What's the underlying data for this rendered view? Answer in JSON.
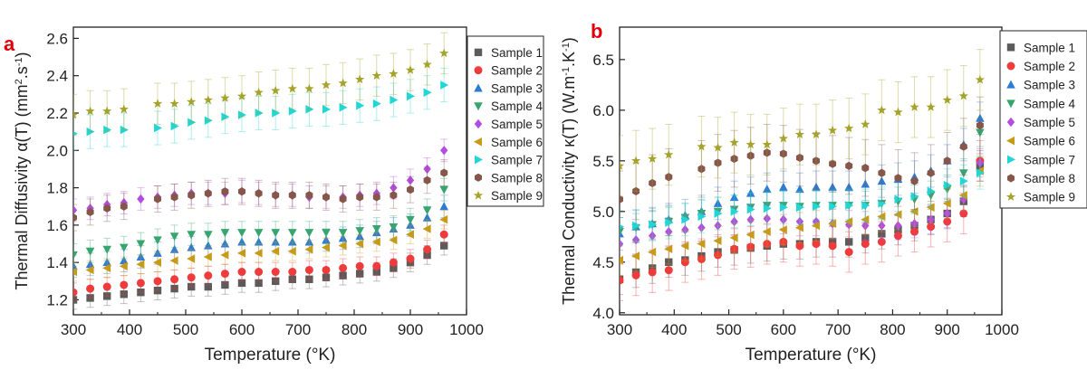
{
  "chart_data": [
    {
      "type": "scatter",
      "panel_label": "a",
      "ylabel": "Thermal Diffusivity α(T) (mm²·s⁻¹)",
      "ylabel_main": "Thermal Diffusivity ",
      "ylabel_symbol": "α(T) (mm",
      "ylabel_sup1": "2",
      "ylabel_mid": ".s",
      "ylabel_sup2": "-1",
      "ylabel_end": ")",
      "xlabel": "Temperature (°K)",
      "xlim": [
        300,
        1000
      ],
      "ylim": [
        1.12,
        2.66
      ],
      "xticks": [
        300,
        400,
        500,
        600,
        700,
        800,
        900,
        1000
      ],
      "yticks": [
        1.2,
        1.4,
        1.6,
        1.8,
        2.0,
        2.2,
        2.4,
        2.6
      ],
      "ytick_labels": [
        "1.2",
        "1.4",
        "1.6",
        "1.8",
        "2.0",
        "2.2",
        "2.4",
        "2.6"
      ],
      "x": [
        300,
        330,
        360,
        390,
        420,
        450,
        480,
        510,
        540,
        570,
        600,
        630,
        660,
        690,
        720,
        750,
        780,
        810,
        840,
        870,
        900,
        930,
        960
      ],
      "series": [
        {
          "name": "Sample 1",
          "err": 0.05,
          "values": [
            1.2,
            1.21,
            1.22,
            1.23,
            1.24,
            1.25,
            1.26,
            1.27,
            1.27,
            1.28,
            1.29,
            1.29,
            1.3,
            1.31,
            1.31,
            1.32,
            1.33,
            1.34,
            1.35,
            1.37,
            1.4,
            1.44,
            1.49
          ]
        },
        {
          "name": "Sample 2",
          "err": 0.05,
          "values": [
            1.24,
            1.26,
            1.27,
            1.28,
            1.29,
            1.3,
            1.31,
            1.32,
            1.33,
            1.34,
            1.35,
            1.35,
            1.35,
            1.35,
            1.36,
            1.36,
            1.37,
            1.38,
            1.38,
            1.4,
            1.42,
            1.47,
            1.55
          ]
        },
        {
          "name": "Sample 3",
          "err": 0.06,
          "values": [
            1.38,
            1.39,
            1.4,
            1.41,
            1.43,
            1.45,
            1.47,
            1.48,
            1.49,
            1.5,
            1.51,
            1.51,
            1.51,
            1.51,
            1.51,
            1.52,
            1.53,
            1.54,
            1.56,
            1.58,
            1.6,
            1.64,
            1.7
          ]
        },
        {
          "name": "Sample 4",
          "err": 0.06,
          "values": [
            1.44,
            1.46,
            1.47,
            1.48,
            1.5,
            1.52,
            1.54,
            1.55,
            1.55,
            1.56,
            1.56,
            1.56,
            1.56,
            1.56,
            1.56,
            1.56,
            1.56,
            1.57,
            1.58,
            1.59,
            1.63,
            1.68,
            1.79
          ]
        },
        {
          "name": "Sample 5",
          "err": 0.06,
          "values": [
            1.68,
            1.69,
            1.71,
            1.72,
            1.74,
            1.75,
            1.76,
            1.77,
            1.77,
            1.77,
            1.78,
            1.77,
            1.76,
            1.76,
            1.75,
            1.75,
            1.75,
            1.76,
            1.77,
            1.8,
            1.84,
            1.9,
            2.0
          ]
        },
        {
          "name": "Sample 6",
          "err": 0.05,
          "values": [
            1.35,
            1.36,
            1.37,
            1.38,
            1.39,
            1.4,
            1.41,
            1.42,
            1.43,
            1.44,
            1.45,
            1.45,
            1.46,
            1.46,
            1.47,
            1.48,
            1.49,
            1.5,
            1.51,
            1.52,
            1.55,
            1.58,
            1.63
          ]
        },
        {
          "name": "Sample 7",
          "err": 0.09,
          "values": [
            2.09,
            2.1,
            2.11,
            2.11,
            null,
            2.12,
            2.13,
            2.15,
            2.16,
            2.18,
            2.19,
            2.2,
            2.2,
            2.21,
            2.22,
            2.22,
            2.23,
            2.24,
            2.25,
            2.27,
            2.29,
            2.31,
            2.35
          ]
        },
        {
          "name": "Sample 8",
          "err": 0.07,
          "values": [
            1.64,
            1.67,
            1.69,
            1.7,
            null,
            1.74,
            1.75,
            1.76,
            1.77,
            1.78,
            1.78,
            1.77,
            1.76,
            1.76,
            1.76,
            1.75,
            1.74,
            1.75,
            1.75,
            1.76,
            1.79,
            1.84,
            1.88
          ]
        },
        {
          "name": "Sample 9",
          "err": 0.11,
          "values": [
            2.19,
            2.21,
            2.21,
            2.22,
            null,
            2.25,
            2.25,
            2.26,
            2.27,
            2.28,
            2.29,
            2.31,
            2.32,
            2.33,
            2.33,
            2.35,
            2.36,
            2.38,
            2.4,
            2.41,
            2.43,
            2.46,
            2.52
          ]
        }
      ],
      "legend": "top-right"
    },
    {
      "type": "scatter",
      "panel_label": "b",
      "ylabel": "Thermal Conductivity κ(T) (W·m⁻¹·K⁻¹)",
      "ylabel_main": "Thermal Conductivity ",
      "ylabel_symbol": "κ(T) (W.m",
      "ylabel_sup1": "-1",
      "ylabel_mid": ".K",
      "ylabel_sup2": "-1",
      "ylabel_end": ")",
      "xlabel": "Temperature (°K)",
      "xlim": [
        300,
        1000
      ],
      "ylim": [
        3.98,
        6.82
      ],
      "xticks": [
        300,
        400,
        500,
        600,
        700,
        800,
        900,
        1000
      ],
      "yticks": [
        4.0,
        4.5,
        5.0,
        5.5,
        6.0,
        6.5
      ],
      "ytick_labels": [
        "4.0",
        "4.5",
        "5.0",
        "5.5",
        "6.0",
        "6.5"
      ],
      "x": [
        300,
        330,
        360,
        390,
        420,
        450,
        480,
        510,
        540,
        570,
        600,
        630,
        660,
        690,
        720,
        750,
        780,
        810,
        840,
        870,
        900,
        930,
        960
      ],
      "series": [
        {
          "name": "Sample 1",
          "err": 0.15,
          "values": [
            4.33,
            4.4,
            4.44,
            4.5,
            4.52,
            4.56,
            4.6,
            4.62,
            4.64,
            4.66,
            4.68,
            4.68,
            4.7,
            4.7,
            4.7,
            4.74,
            4.78,
            4.82,
            4.86,
            4.92,
            4.98,
            5.1,
            5.45
          ]
        },
        {
          "name": "Sample 2",
          "err": 0.2,
          "values": [
            4.32,
            4.37,
            4.4,
            4.42,
            4.5,
            4.53,
            4.57,
            4.63,
            4.65,
            4.68,
            4.7,
            4.66,
            4.68,
            4.66,
            4.6,
            4.68,
            4.7,
            4.76,
            4.8,
            4.85,
            4.9,
            4.98,
            5.5
          ]
        },
        {
          "name": "Sample 3",
          "err": 0.16,
          "values": [
            4.78,
            4.85,
            4.88,
            4.92,
            4.96,
            5.0,
            5.08,
            5.14,
            5.18,
            5.22,
            5.24,
            5.22,
            5.24,
            5.24,
            5.24,
            5.27,
            5.3,
            5.32,
            5.34,
            5.4,
            5.5,
            5.66,
            5.92
          ]
        },
        {
          "name": "Sample 4",
          "err": 0.14,
          "values": [
            4.8,
            4.84,
            4.87,
            4.9,
            4.94,
            4.98,
            5.0,
            5.02,
            5.04,
            5.06,
            5.06,
            5.05,
            5.06,
            5.06,
            5.06,
            5.06,
            5.08,
            5.1,
            5.12,
            5.16,
            5.22,
            5.38,
            5.78
          ]
        },
        {
          "name": "Sample 5",
          "err": 0.14,
          "values": [
            4.68,
            4.72,
            4.76,
            4.8,
            4.82,
            4.84,
            4.86,
            4.9,
            4.92,
            4.93,
            4.92,
            4.9,
            4.9,
            4.88,
            4.87,
            4.86,
            4.86,
            4.86,
            4.88,
            4.92,
            4.98,
            5.12,
            5.48
          ]
        },
        {
          "name": "Sample 6",
          "err": 0.15,
          "values": [
            4.52,
            4.56,
            4.6,
            4.63,
            4.66,
            4.68,
            4.71,
            4.74,
            4.77,
            4.8,
            4.82,
            4.84,
            4.86,
            4.88,
            4.9,
            4.92,
            4.95,
            4.97,
            5.0,
            5.04,
            5.08,
            5.16,
            5.4
          ]
        },
        {
          "name": "Sample 7",
          "err": 0.16,
          "values": [
            4.85,
            4.86,
            4.87,
            4.89,
            4.92,
            4.95,
            4.98,
            5.0,
            5.02,
            5.03,
            5.04,
            5.04,
            5.05,
            5.05,
            5.06,
            5.06,
            5.08,
            5.12,
            5.15,
            5.2,
            5.26,
            5.3,
            5.38
          ]
        },
        {
          "name": "Sample 8",
          "err": 0.28,
          "values": [
            5.12,
            5.2,
            5.28,
            5.34,
            null,
            5.42,
            5.48,
            5.52,
            5.55,
            5.58,
            5.57,
            5.53,
            5.5,
            5.47,
            5.45,
            5.43,
            5.38,
            5.33,
            5.3,
            5.38,
            5.5,
            5.64,
            5.85
          ]
        },
        {
          "name": "Sample 9",
          "err": 0.3,
          "values": [
            5.45,
            5.5,
            5.52,
            5.56,
            null,
            5.64,
            5.63,
            5.68,
            5.66,
            5.66,
            5.72,
            5.76,
            5.76,
            5.8,
            5.82,
            5.86,
            6.0,
            5.98,
            6.03,
            6.03,
            6.1,
            6.14,
            6.3
          ]
        }
      ],
      "legend": "top-right"
    }
  ],
  "legend": {
    "entries": [
      "Sample 1",
      "Sample 2",
      "Sample 3",
      "Sample 4",
      "Sample 5",
      "Sample 6",
      "Sample 7",
      "Sample 8",
      "Sample 9"
    ],
    "colors": [
      "#5b5b5b",
      "#ee3b3b",
      "#2e7bd6",
      "#36a66e",
      "#b34de0",
      "#c79a17",
      "#22d6d6",
      "#86564a",
      "#a4a32b"
    ],
    "markers": [
      "square",
      "circle",
      "triangle-up",
      "triangle-down",
      "diamond",
      "triangle-left",
      "triangle-right",
      "hexagon",
      "star"
    ]
  }
}
